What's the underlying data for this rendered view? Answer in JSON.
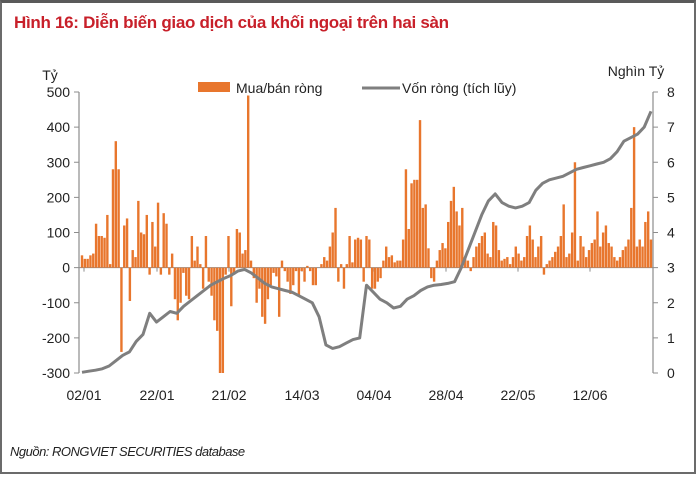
{
  "title": "Hình 16: Diễn biến giao dịch của khối ngoại trên hai sàn",
  "source": "Nguồn: RONGVIET SECURITIES database",
  "colors": {
    "bar": "#e8762d",
    "line": "#7f7f7f",
    "title": "#c8202a",
    "axis": "#8c8c8c"
  },
  "chart_data": {
    "type": "bar+line",
    "title": "Hình 16: Diễn biến giao dịch của khối ngoại trên hai sàn",
    "left_axis": {
      "label": "Tỷ",
      "ticks": [
        "500",
        "400",
        "300",
        "200",
        "100",
        "0",
        "-100",
        "-200",
        "-300"
      ],
      "ylim": [
        -300,
        500
      ]
    },
    "right_axis": {
      "label": "Nghìn Tỷ",
      "ticks": [
        "8",
        "7",
        "6",
        "5",
        "4",
        "3",
        "2",
        "1",
        "0"
      ],
      "ylim": [
        0,
        8
      ]
    },
    "x_ticks": [
      "02/01",
      "22/01",
      "21/02",
      "14/03",
      "04/04",
      "28/04",
      "22/05",
      "12/06"
    ],
    "legend": [
      {
        "name": "Mua/bán ròng",
        "type": "bar"
      },
      {
        "name": "Vốn ròng (tích lũy)",
        "type": "line"
      }
    ],
    "series": [
      {
        "name": "Mua/bán ròng",
        "axis": "left",
        "values": [
          35,
          25,
          25,
          35,
          40,
          125,
          90,
          90,
          85,
          150,
          10,
          280,
          360,
          280,
          -240,
          120,
          140,
          -95,
          50,
          30,
          190,
          100,
          95,
          150,
          -20,
          130,
          60,
          185,
          -20,
          155,
          125,
          -20,
          40,
          -90,
          -150,
          -100,
          -15,
          -80,
          -90,
          90,
          20,
          60,
          10,
          -60,
          90,
          -40,
          -80,
          -150,
          -180,
          -300,
          -300,
          -20,
          90,
          -110,
          -20,
          110,
          100,
          40,
          50,
          490,
          20,
          -30,
          -100,
          -60,
          -140,
          -160,
          -90,
          -50,
          -15,
          -25,
          -140,
          20,
          -10,
          -40,
          -75,
          -50,
          -10,
          -80,
          -10,
          -40,
          5,
          -10,
          -50,
          -50,
          0,
          10,
          30,
          20,
          60,
          100,
          170,
          -40,
          10,
          -60,
          10,
          90,
          15,
          80,
          85,
          80,
          -40,
          90,
          80,
          -60,
          -60,
          -40,
          -30,
          20,
          60,
          30,
          35,
          15,
          20,
          20,
          80,
          280,
          110,
          240,
          250,
          250,
          420,
          170,
          180,
          55,
          -30,
          -40,
          20,
          50,
          70,
          55,
          130,
          190,
          230,
          160,
          120,
          170,
          30,
          20,
          -10,
          30,
          60,
          70,
          90,
          100,
          40,
          30,
          130,
          120,
          50,
          20,
          25,
          30,
          10,
          30,
          60,
          40,
          20,
          30,
          90,
          120,
          80,
          30,
          60,
          90,
          -20,
          10,
          20,
          30,
          45,
          60,
          90,
          180,
          30,
          40,
          100,
          300,
          20,
          90,
          60,
          30,
          50,
          70,
          80,
          160,
          60,
          100,
          120,
          70,
          60,
          30,
          20,
          30,
          50,
          60,
          80,
          170,
          400,
          60,
          80,
          60,
          130,
          160,
          80
        ]
      },
      {
        "name": "Vốn ròng (tích lũy)",
        "axis": "right",
        "values": [
          0.02,
          0.05,
          0.08,
          0.12,
          0.2,
          0.35,
          0.5,
          0.6,
          0.9,
          1.1,
          1.7,
          1.45,
          1.6,
          1.75,
          1.7,
          1.9,
          2.05,
          2.2,
          2.35,
          2.5,
          2.6,
          2.7,
          2.78,
          2.9,
          2.95,
          2.85,
          2.7,
          2.55,
          2.45,
          2.4,
          2.35,
          2.3,
          2.2,
          2.1,
          2.0,
          1.6,
          0.8,
          0.7,
          0.75,
          0.85,
          0.95,
          1.0,
          2.5,
          2.3,
          2.1,
          2.0,
          1.85,
          1.9,
          2.1,
          2.2,
          2.35,
          2.45,
          2.5,
          2.52,
          2.55,
          2.6,
          3.0,
          3.5,
          4.0,
          4.5,
          4.9,
          5.1,
          4.85,
          4.75,
          4.7,
          4.75,
          4.85,
          5.2,
          5.4,
          5.5,
          5.55,
          5.6,
          5.7,
          5.8,
          5.85,
          5.9,
          5.95,
          6.0,
          6.1,
          6.3,
          6.6,
          6.7,
          6.8,
          7.0,
          7.45
        ]
      }
    ]
  }
}
